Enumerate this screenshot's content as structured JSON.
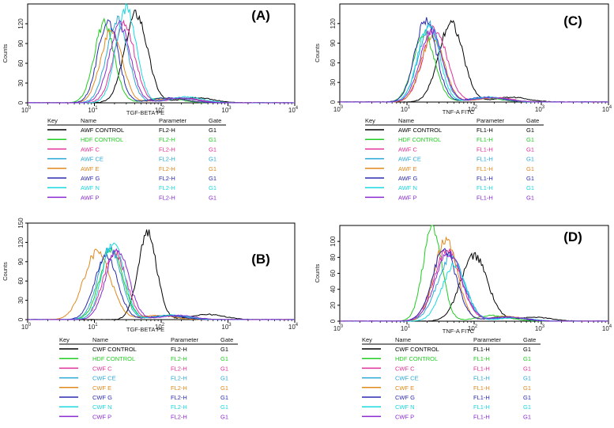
{
  "chart_data": [
    {
      "type": "line",
      "panel_label": "(A)",
      "title": "",
      "xlabel": "TGF-BETA PE",
      "ylabel": "Counts",
      "x_scale": "log",
      "xlim": [
        1,
        10000
      ],
      "ylim": [
        0,
        150
      ],
      "yticks": [
        0,
        30,
        60,
        90,
        120
      ],
      "xticks": [
        "10",
        "10",
        "10",
        "10",
        "10"
      ],
      "xtick_exponents": [
        "0",
        "1",
        "2",
        "3",
        "4"
      ],
      "legend": {
        "headers": [
          "Key",
          "Name",
          "Parameter",
          "Gate"
        ],
        "entries": [
          {
            "name": "AWF CONTROL",
            "parameter": "FL2-H",
            "gate": "G1",
            "color": "#000000"
          },
          {
            "name": "HDF CONTROL",
            "parameter": "FL2-H",
            "gate": "G1",
            "color": "#22cc22"
          },
          {
            "name": "AWF C",
            "parameter": "FL2-H",
            "gate": "G1",
            "color": "#e0309a"
          },
          {
            "name": "AWF CE",
            "parameter": "FL2-H",
            "gate": "G1",
            "color": "#2aa8d8"
          },
          {
            "name": "AWF E",
            "parameter": "FL2-H",
            "gate": "G1",
            "color": "#e08a1e"
          },
          {
            "name": "AWF G",
            "parameter": "FL2-H",
            "gate": "G1",
            "color": "#2a2ab0"
          },
          {
            "name": "AWF N",
            "parameter": "FL2-H",
            "gate": "G1",
            "color": "#18d8e0"
          },
          {
            "name": "AWF P",
            "parameter": "FL2-H",
            "gate": "G1",
            "color": "#8a2ad0"
          }
        ]
      },
      "series": [
        {
          "name": "AWF CONTROL",
          "peak_x": 42,
          "peak_y": 135,
          "width": 0.17
        },
        {
          "name": "HDF CONTROL",
          "peak_x": 14,
          "peak_y": 120,
          "width": 0.15
        },
        {
          "name": "AWF C",
          "peak_x": 28,
          "peak_y": 118,
          "width": 0.16
        },
        {
          "name": "AWF CE",
          "peak_x": 22,
          "peak_y": 125,
          "width": 0.16
        },
        {
          "name": "AWF E",
          "peak_x": 18,
          "peak_y": 110,
          "width": 0.16
        },
        {
          "name": "AWF G",
          "peak_x": 16,
          "peak_y": 125,
          "width": 0.15
        },
        {
          "name": "AWF N",
          "peak_x": 30,
          "peak_y": 145,
          "width": 0.15
        },
        {
          "name": "AWF P",
          "peak_x": 24,
          "peak_y": 118,
          "width": 0.16
        }
      ]
    },
    {
      "type": "line",
      "panel_label": "(B)",
      "title": "",
      "xlabel": "TGF-BETA PE",
      "ylabel": "Counts",
      "x_scale": "log",
      "xlim": [
        1,
        10000
      ],
      "ylim": [
        0,
        150
      ],
      "yticks": [
        0,
        30,
        60,
        90,
        120,
        150
      ],
      "xticks": [
        "10",
        "10",
        "10",
        "10",
        "10"
      ],
      "xtick_exponents": [
        "0",
        "1",
        "2",
        "3",
        "4"
      ],
      "legend": {
        "headers": [
          "Key",
          "Name",
          "Parameter",
          "Gate"
        ],
        "entries": [
          {
            "name": "CWF CONTROL",
            "parameter": "FL2-H",
            "gate": "G1",
            "color": "#000000"
          },
          {
            "name": "HDF CONTROL",
            "parameter": "FL2-H",
            "gate": "G1",
            "color": "#22cc22"
          },
          {
            "name": "CWF C",
            "parameter": "FL2-H",
            "gate": "G1",
            "color": "#e0309a"
          },
          {
            "name": "CWF CE",
            "parameter": "FL2-H",
            "gate": "G1",
            "color": "#2aa8d8"
          },
          {
            "name": "CWF E",
            "parameter": "FL2-H",
            "gate": "G1",
            "color": "#e08a1e"
          },
          {
            "name": "CWF G",
            "parameter": "FL2-H",
            "gate": "G1",
            "color": "#2a2ab0"
          },
          {
            "name": "CWF N",
            "parameter": "FL2-H",
            "gate": "G1",
            "color": "#18d8e0"
          },
          {
            "name": "CWF P",
            "parameter": "FL2-H",
            "gate": "G1",
            "color": "#8a2ad0"
          }
        ]
      },
      "series": [
        {
          "name": "CWF CONTROL",
          "peak_x": 62,
          "peak_y": 135,
          "width": 0.14
        },
        {
          "name": "HDF CONTROL",
          "peak_x": 18,
          "peak_y": 110,
          "width": 0.17
        },
        {
          "name": "CWF C",
          "peak_x": 20,
          "peak_y": 105,
          "width": 0.17
        },
        {
          "name": "CWF CE",
          "peak_x": 17,
          "peak_y": 112,
          "width": 0.17
        },
        {
          "name": "CWF E",
          "peak_x": 11,
          "peak_y": 105,
          "width": 0.2
        },
        {
          "name": "CWF G",
          "peak_x": 15,
          "peak_y": 100,
          "width": 0.17
        },
        {
          "name": "CWF N",
          "peak_x": 19,
          "peak_y": 120,
          "width": 0.16
        },
        {
          "name": "CWF P",
          "peak_x": 22,
          "peak_y": 110,
          "width": 0.17
        }
      ]
    },
    {
      "type": "line",
      "panel_label": "(C)",
      "title": "",
      "xlabel": "TNF-A FITC",
      "ylabel": "Counts",
      "x_scale": "log",
      "xlim": [
        1,
        10000
      ],
      "ylim": [
        0,
        150
      ],
      "yticks": [
        0,
        30,
        60,
        90,
        120
      ],
      "xticks": [
        "10",
        "10",
        "10",
        "10",
        "10"
      ],
      "xtick_exponents": [
        "0",
        "1",
        "2",
        "3",
        "4"
      ],
      "legend": {
        "headers": [
          "Key",
          "Name",
          "Parameter",
          "Gate"
        ],
        "entries": [
          {
            "name": "AWF CONTROL",
            "parameter": "FL1-H",
            "gate": "G1",
            "color": "#000000"
          },
          {
            "name": "HDF CONTROL",
            "parameter": "FL1-H",
            "gate": "G1",
            "color": "#22cc22"
          },
          {
            "name": "AWF C",
            "parameter": "FL1-H",
            "gate": "G1",
            "color": "#e0309a"
          },
          {
            "name": "AWF CE",
            "parameter": "FL1-H",
            "gate": "G1",
            "color": "#2aa8d8"
          },
          {
            "name": "AWF E",
            "parameter": "FL1-H",
            "gate": "G1",
            "color": "#e08a1e"
          },
          {
            "name": "AWF G",
            "parameter": "FL1-H",
            "gate": "G1",
            "color": "#2a2ab0"
          },
          {
            "name": "AWF N",
            "parameter": "FL1-H",
            "gate": "G1",
            "color": "#18d8e0"
          },
          {
            "name": "AWF P",
            "parameter": "FL1-H",
            "gate": "G1",
            "color": "#8a2ad0"
          }
        ]
      },
      "series": [
        {
          "name": "AWF CONTROL",
          "peak_x": 45,
          "peak_y": 122,
          "width": 0.18
        },
        {
          "name": "HDF CONTROL",
          "peak_x": 18,
          "peak_y": 105,
          "width": 0.16
        },
        {
          "name": "AWF C",
          "peak_x": 26,
          "peak_y": 112,
          "width": 0.18
        },
        {
          "name": "AWF CE",
          "peak_x": 22,
          "peak_y": 118,
          "width": 0.17
        },
        {
          "name": "AWF E",
          "peak_x": 24,
          "peak_y": 100,
          "width": 0.17
        },
        {
          "name": "AWF G",
          "peak_x": 19,
          "peak_y": 125,
          "width": 0.16
        },
        {
          "name": "AWF N",
          "peak_x": 21,
          "peak_y": 120,
          "width": 0.16
        },
        {
          "name": "AWF P",
          "peak_x": 23,
          "peak_y": 108,
          "width": 0.17
        }
      ]
    },
    {
      "type": "line",
      "panel_label": "(D)",
      "title": "",
      "xlabel": "TNF-A FITC",
      "ylabel": "Counts",
      "x_scale": "log",
      "xlim": [
        1,
        10000
      ],
      "ylim": [
        0,
        120
      ],
      "yticks": [
        0,
        20,
        40,
        60,
        80,
        100
      ],
      "xticks": [
        "10",
        "10",
        "10",
        "10",
        "10"
      ],
      "xtick_exponents": [
        "0",
        "1",
        "2",
        "3",
        "4"
      ],
      "legend": {
        "headers": [
          "Key",
          "Name",
          "Parameter",
          "Gate"
        ],
        "entries": [
          {
            "name": "CWF CONTROL",
            "parameter": "FL1-H",
            "gate": "G1",
            "color": "#000000"
          },
          {
            "name": "HDF CONTROL",
            "parameter": "FL1-H",
            "gate": "G1",
            "color": "#22cc22"
          },
          {
            "name": "CWF C",
            "parameter": "FL1-H",
            "gate": "G1",
            "color": "#e0309a"
          },
          {
            "name": "CWF CE",
            "parameter": "FL1-H",
            "gate": "G1",
            "color": "#2aa8d8"
          },
          {
            "name": "CWF E",
            "parameter": "FL1-H",
            "gate": "G1",
            "color": "#e08a1e"
          },
          {
            "name": "CWF G",
            "parameter": "FL1-H",
            "gate": "G1",
            "color": "#2a2ab0"
          },
          {
            "name": "CWF N",
            "parameter": "FL1-H",
            "gate": "G1",
            "color": "#18d8e0"
          },
          {
            "name": "CWF P",
            "parameter": "FL1-H",
            "gate": "G1",
            "color": "#8a2ad0"
          }
        ]
      },
      "series": [
        {
          "name": "CWF CONTROL",
          "peak_x": 100,
          "peak_y": 82,
          "width": 0.2
        },
        {
          "name": "HDF CONTROL",
          "peak_x": 24,
          "peak_y": 118,
          "width": 0.14
        },
        {
          "name": "CWF C",
          "peak_x": 40,
          "peak_y": 90,
          "width": 0.2
        },
        {
          "name": "CWF CE",
          "peak_x": 45,
          "peak_y": 80,
          "width": 0.2
        },
        {
          "name": "CWF E",
          "peak_x": 38,
          "peak_y": 102,
          "width": 0.17
        },
        {
          "name": "CWF G",
          "peak_x": 36,
          "peak_y": 90,
          "width": 0.18
        },
        {
          "name": "CWF N",
          "peak_x": 50,
          "peak_y": 70,
          "width": 0.18
        },
        {
          "name": "CWF P",
          "peak_x": 42,
          "peak_y": 85,
          "width": 0.2
        }
      ]
    }
  ]
}
